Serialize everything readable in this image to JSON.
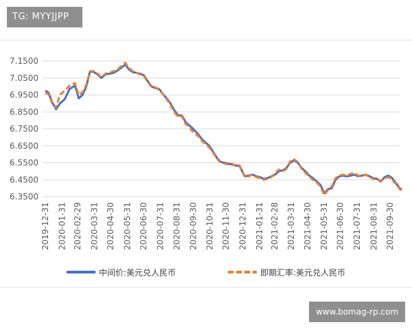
{
  "watermarks": {
    "top_left": "TG: MYYJJPP",
    "bottom_right": "www.bomag-rp.com"
  },
  "colors": {
    "mid_price": "#4472c4",
    "spot_rate": "#ed7d31",
    "grid": "#d9d9d9",
    "axis_text": "#595959"
  },
  "chart_data": {
    "type": "line",
    "title": "",
    "xlabel": "",
    "ylabel": "",
    "ylim": [
      6.35,
      7.15
    ],
    "yticks": [
      "7.1500",
      "7.0500",
      "6.9500",
      "6.8500",
      "6.7500",
      "6.6500",
      "6.5500",
      "6.4500",
      "6.3500"
    ],
    "xticks": [
      "2019-12-31",
      "2020-01-31",
      "2020-02-29",
      "2020-03-31",
      "2020-04-30",
      "2020-05-31",
      "2020-06-30",
      "2020-07-31",
      "2020-08-31",
      "2020-09-30",
      "2020-10-31",
      "2020-11-30",
      "2020-12-31",
      "2021-01-31",
      "2021-02-28",
      "2021-03-31",
      "2021-04-30",
      "2021-05-31",
      "2021-06-30",
      "2021-07-31",
      "2021-08-31",
      "2021-09-30"
    ],
    "grid": "horizontal",
    "legend_position": "bottom",
    "series": [
      {
        "name": "中间价:美元兑人民币",
        "style": "solid",
        "color": "#4472c4",
        "points": [
          [
            "2019-12-31",
            6.976
          ],
          [
            "2020-01-06",
            6.963
          ],
          [
            "2020-01-13",
            6.905
          ],
          [
            "2020-01-20",
            6.865
          ],
          [
            "2020-01-27",
            6.9
          ],
          [
            "2020-02-05",
            6.925
          ],
          [
            "2020-02-14",
            6.985
          ],
          [
            "2020-02-24",
            7.005
          ],
          [
            "2020-03-02",
            6.93
          ],
          [
            "2020-03-09",
            6.95
          ],
          [
            "2020-03-16",
            7.0
          ],
          [
            "2020-03-23",
            7.09
          ],
          [
            "2020-03-30",
            7.085
          ],
          [
            "2020-04-06",
            7.07
          ],
          [
            "2020-04-13",
            7.05
          ],
          [
            "2020-04-20",
            7.07
          ],
          [
            "2020-04-27",
            7.075
          ],
          [
            "2020-05-06",
            7.08
          ],
          [
            "2020-05-13",
            7.095
          ],
          [
            "2020-05-20",
            7.11
          ],
          [
            "2020-05-27",
            7.13
          ],
          [
            "2020-06-03",
            7.1
          ],
          [
            "2020-06-10",
            7.085
          ],
          [
            "2020-06-17",
            7.08
          ],
          [
            "2020-06-24",
            7.075
          ],
          [
            "2020-07-01",
            7.065
          ],
          [
            "2020-07-08",
            7.03
          ],
          [
            "2020-07-15",
            7.0
          ],
          [
            "2020-07-22",
            6.99
          ],
          [
            "2020-07-29",
            6.985
          ],
          [
            "2020-08-05",
            6.955
          ],
          [
            "2020-08-12",
            6.93
          ],
          [
            "2020-08-19",
            6.9
          ],
          [
            "2020-08-26",
            6.86
          ],
          [
            "2020-09-02",
            6.83
          ],
          [
            "2020-09-09",
            6.83
          ],
          [
            "2020-09-16",
            6.79
          ],
          [
            "2020-09-23",
            6.77
          ],
          [
            "2020-09-30",
            6.75
          ],
          [
            "2020-10-09",
            6.72
          ],
          [
            "2020-10-16",
            6.69
          ],
          [
            "2020-10-23",
            6.67
          ],
          [
            "2020-10-30",
            6.65
          ],
          [
            "2020-11-06",
            6.615
          ],
          [
            "2020-11-13",
            6.58
          ],
          [
            "2020-11-20",
            6.555
          ],
          [
            "2020-11-27",
            6.55
          ],
          [
            "2020-12-04",
            6.545
          ],
          [
            "2020-12-11",
            6.54
          ],
          [
            "2020-12-18",
            6.535
          ],
          [
            "2020-12-25",
            6.53
          ],
          [
            "2021-01-04",
            6.47
          ],
          [
            "2021-01-11",
            6.475
          ],
          [
            "2021-01-18",
            6.48
          ],
          [
            "2021-01-25",
            6.47
          ],
          [
            "2021-02-01",
            6.465
          ],
          [
            "2021-02-08",
            6.455
          ],
          [
            "2021-02-15",
            6.46
          ],
          [
            "2021-02-22",
            6.47
          ],
          [
            "2021-03-01",
            6.48
          ],
          [
            "2021-03-08",
            6.5
          ],
          [
            "2021-03-15",
            6.505
          ],
          [
            "2021-03-22",
            6.52
          ],
          [
            "2021-03-29",
            6.55
          ],
          [
            "2021-04-05",
            6.565
          ],
          [
            "2021-04-12",
            6.55
          ],
          [
            "2021-04-19",
            6.52
          ],
          [
            "2021-04-26",
            6.5
          ],
          [
            "2021-05-03",
            6.475
          ],
          [
            "2021-05-10",
            6.46
          ],
          [
            "2021-05-17",
            6.44
          ],
          [
            "2021-05-24",
            6.42
          ],
          [
            "2021-05-31",
            6.37
          ],
          [
            "2021-06-07",
            6.395
          ],
          [
            "2021-06-14",
            6.4
          ],
          [
            "2021-06-21",
            6.45
          ],
          [
            "2021-06-28",
            6.47
          ],
          [
            "2021-07-05",
            6.475
          ],
          [
            "2021-07-12",
            6.47
          ],
          [
            "2021-07-19",
            6.475
          ],
          [
            "2021-07-26",
            6.48
          ],
          [
            "2021-08-02",
            6.47
          ],
          [
            "2021-08-09",
            6.475
          ],
          [
            "2021-08-16",
            6.48
          ],
          [
            "2021-08-23",
            6.47
          ],
          [
            "2021-08-30",
            6.46
          ],
          [
            "2021-09-06",
            6.455
          ],
          [
            "2021-09-13",
            6.44
          ],
          [
            "2021-09-20",
            6.465
          ],
          [
            "2021-09-27",
            6.475
          ],
          [
            "2021-10-04",
            6.46
          ],
          [
            "2021-10-11",
            6.43
          ],
          [
            "2021-10-18",
            6.4
          ],
          [
            "2021-10-22",
            6.39
          ]
        ]
      },
      {
        "name": "即期汇率:美元兑人民币",
        "style": "dashed",
        "color": "#ed7d31",
        "points": [
          [
            "2019-12-31",
            6.962
          ],
          [
            "2020-01-06",
            6.955
          ],
          [
            "2020-01-13",
            6.9
          ],
          [
            "2020-01-20",
            6.875
          ],
          [
            "2020-01-27",
            6.95
          ],
          [
            "2020-02-05",
            6.975
          ],
          [
            "2020-02-14",
            7.005
          ],
          [
            "2020-02-24",
            7.02
          ],
          [
            "2020-03-02",
            6.95
          ],
          [
            "2020-03-09",
            6.965
          ],
          [
            "2020-03-16",
            7.01
          ],
          [
            "2020-03-23",
            7.09
          ],
          [
            "2020-03-30",
            7.09
          ],
          [
            "2020-04-06",
            7.075
          ],
          [
            "2020-04-13",
            7.055
          ],
          [
            "2020-04-20",
            7.075
          ],
          [
            "2020-04-27",
            7.08
          ],
          [
            "2020-05-06",
            7.09
          ],
          [
            "2020-05-13",
            7.1
          ],
          [
            "2020-05-20",
            7.12
          ],
          [
            "2020-05-27",
            7.14
          ],
          [
            "2020-06-03",
            7.11
          ],
          [
            "2020-06-10",
            7.09
          ],
          [
            "2020-06-17",
            7.08
          ],
          [
            "2020-06-24",
            7.07
          ],
          [
            "2020-07-01",
            7.06
          ],
          [
            "2020-07-08",
            7.025
          ],
          [
            "2020-07-15",
            6.995
          ],
          [
            "2020-07-22",
            6.995
          ],
          [
            "2020-07-29",
            6.98
          ],
          [
            "2020-08-05",
            6.955
          ],
          [
            "2020-08-12",
            6.925
          ],
          [
            "2020-08-19",
            6.89
          ],
          [
            "2020-08-26",
            6.85
          ],
          [
            "2020-09-02",
            6.82
          ],
          [
            "2020-09-09",
            6.825
          ],
          [
            "2020-09-16",
            6.78
          ],
          [
            "2020-09-23",
            6.76
          ],
          [
            "2020-09-30",
            6.73
          ],
          [
            "2020-10-09",
            6.71
          ],
          [
            "2020-10-16",
            6.68
          ],
          [
            "2020-10-23",
            6.66
          ],
          [
            "2020-10-30",
            6.64
          ],
          [
            "2020-11-06",
            6.61
          ],
          [
            "2020-11-13",
            6.575
          ],
          [
            "2020-11-20",
            6.55
          ],
          [
            "2020-11-27",
            6.545
          ],
          [
            "2020-12-04",
            6.54
          ],
          [
            "2020-12-11",
            6.545
          ],
          [
            "2020-12-18",
            6.53
          ],
          [
            "2020-12-25",
            6.535
          ],
          [
            "2021-01-04",
            6.465
          ],
          [
            "2021-01-11",
            6.47
          ],
          [
            "2021-01-18",
            6.48
          ],
          [
            "2021-01-25",
            6.465
          ],
          [
            "2021-02-01",
            6.46
          ],
          [
            "2021-02-08",
            6.45
          ],
          [
            "2021-02-15",
            6.455
          ],
          [
            "2021-02-22",
            6.465
          ],
          [
            "2021-03-01",
            6.49
          ],
          [
            "2021-03-08",
            6.51
          ],
          [
            "2021-03-15",
            6.5
          ],
          [
            "2021-03-22",
            6.515
          ],
          [
            "2021-03-29",
            6.56
          ],
          [
            "2021-04-05",
            6.57
          ],
          [
            "2021-04-12",
            6.555
          ],
          [
            "2021-04-19",
            6.515
          ],
          [
            "2021-04-26",
            6.49
          ],
          [
            "2021-05-03",
            6.47
          ],
          [
            "2021-05-10",
            6.45
          ],
          [
            "2021-05-17",
            6.435
          ],
          [
            "2021-05-24",
            6.41
          ],
          [
            "2021-05-31",
            6.36
          ],
          [
            "2021-06-07",
            6.39
          ],
          [
            "2021-06-14",
            6.41
          ],
          [
            "2021-06-21",
            6.46
          ],
          [
            "2021-06-28",
            6.475
          ],
          [
            "2021-07-05",
            6.48
          ],
          [
            "2021-07-12",
            6.475
          ],
          [
            "2021-07-19",
            6.485
          ],
          [
            "2021-07-26",
            6.49
          ],
          [
            "2021-08-02",
            6.475
          ],
          [
            "2021-08-09",
            6.47
          ],
          [
            "2021-08-16",
            6.48
          ],
          [
            "2021-08-23",
            6.465
          ],
          [
            "2021-08-30",
            6.455
          ],
          [
            "2021-09-06",
            6.45
          ],
          [
            "2021-09-13",
            6.445
          ],
          [
            "2021-09-20",
            6.46
          ],
          [
            "2021-09-27",
            6.465
          ],
          [
            "2021-10-04",
            6.45
          ],
          [
            "2021-10-11",
            6.425
          ],
          [
            "2021-10-18",
            6.395
          ],
          [
            "2021-10-22",
            6.385
          ]
        ]
      }
    ]
  }
}
